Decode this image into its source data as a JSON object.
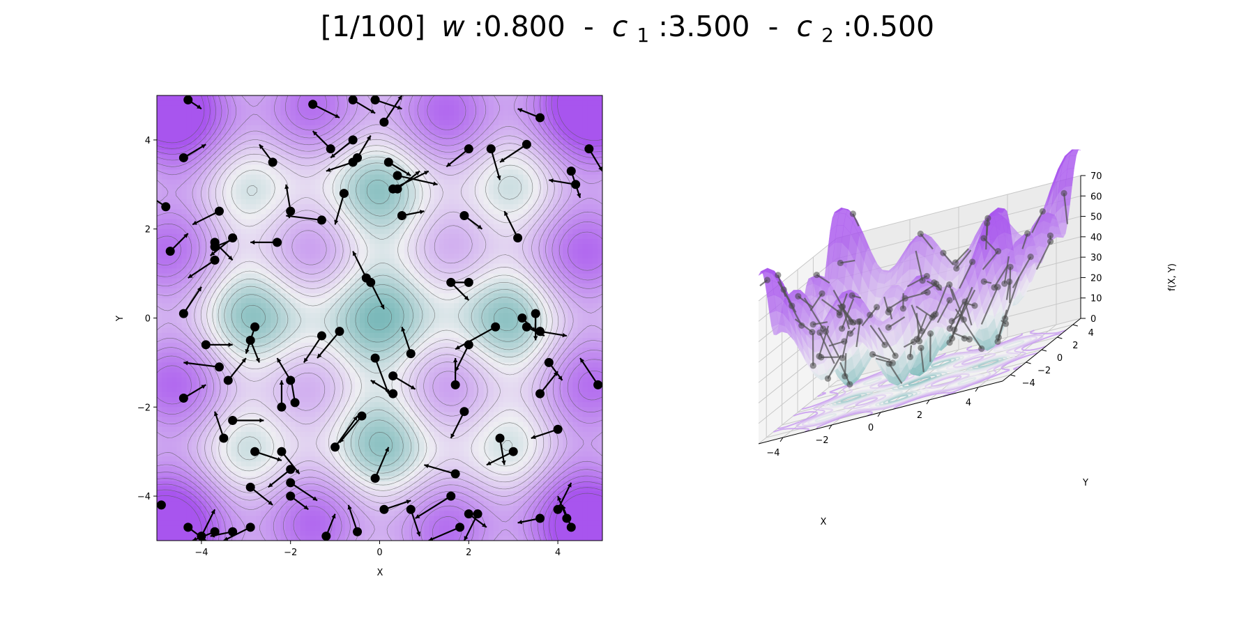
{
  "figure": {
    "title": {
      "iter": "[1/100]",
      "w_label": "w",
      "w_value": ":0.800",
      "sep1": " - ",
      "c1_label": "c",
      "c1_sub": "1",
      "c1_value": ":3.500",
      "sep2": " - ",
      "c2_label": "c",
      "c2_sub": "2",
      "c2_value": ":0.500"
    }
  },
  "colors": {
    "low": "#6db3b3",
    "mid": "#eeeef2",
    "high": "#a855ee",
    "particle": "#000000",
    "contour_line": "#555555"
  },
  "chart_data": [
    {
      "type": "contour",
      "xlabel": "X",
      "ylabel": "Y",
      "xlim": [
        -5,
        5
      ],
      "ylim": [
        -5,
        5
      ],
      "xticks": [
        -4,
        -2,
        0,
        2,
        4
      ],
      "yticks": [
        -4,
        -2,
        0,
        2,
        4
      ],
      "tick_labels_x": [
        "−4",
        "−2",
        "0",
        "2",
        "4"
      ],
      "tick_labels_y": [
        "−4",
        "−2",
        "0",
        "2",
        "4"
      ],
      "grid": false,
      "particles": [
        [
          -4.3,
          4.9,
          0.3,
          -0.2
        ],
        [
          -4.4,
          3.6,
          0.5,
          0.3
        ],
        [
          -4.8,
          2.5,
          -0.6,
          0.4
        ],
        [
          -4.7,
          1.5,
          0.4,
          0.4
        ],
        [
          -4.4,
          0.1,
          0.4,
          0.6
        ],
        [
          -4.9,
          -4.2,
          -0.3,
          0.0
        ],
        [
          -4.4,
          -1.8,
          0.5,
          0.3
        ],
        [
          -4.3,
          -4.7,
          0.4,
          -0.3
        ],
        [
          -4.0,
          -4.9,
          0.3,
          0.6
        ],
        [
          -3.7,
          -4.8,
          -0.5,
          -0.2
        ],
        [
          -3.6,
          2.4,
          -0.6,
          -0.3
        ],
        [
          -3.7,
          1.7,
          0.4,
          -0.4
        ],
        [
          -3.7,
          1.3,
          -0.6,
          -0.4
        ],
        [
          -3.7,
          1.6,
          0.5,
          0.2
        ],
        [
          -3.3,
          1.8,
          -0.5,
          -0.4
        ],
        [
          -3.9,
          -0.6,
          0.6,
          0.0
        ],
        [
          -3.6,
          -1.1,
          -0.8,
          0.1
        ],
        [
          -3.4,
          -1.4,
          0.4,
          0.5
        ],
        [
          -3.5,
          -2.7,
          -0.2,
          0.6
        ],
        [
          -3.3,
          -2.3,
          0.7,
          0.0
        ],
        [
          -3.3,
          -4.8,
          -0.5,
          -0.1
        ],
        [
          -2.9,
          -4.7,
          -0.6,
          -0.3
        ],
        [
          -2.9,
          -3.8,
          0.5,
          -0.4
        ],
        [
          -2.8,
          -3.0,
          0.6,
          -0.2
        ],
        [
          -2.8,
          -0.2,
          -0.2,
          -0.6
        ],
        [
          -2.9,
          -0.5,
          0.2,
          -0.5
        ],
        [
          -2.4,
          3.5,
          -0.3,
          0.4
        ],
        [
          -2.0,
          2.4,
          -0.1,
          0.6
        ],
        [
          -2.3,
          1.7,
          -0.6,
          0.0
        ],
        [
          -1.3,
          2.2,
          -0.8,
          0.1
        ],
        [
          -2.0,
          -1.4,
          -0.3,
          0.5
        ],
        [
          -1.9,
          -1.9,
          -0.1,
          0.6
        ],
        [
          -2.2,
          -2.0,
          0.0,
          0.6
        ],
        [
          -2.2,
          -3.0,
          0.4,
          -0.5
        ],
        [
          -2.0,
          -3.4,
          -0.5,
          -0.4
        ],
        [
          -2.0,
          -3.7,
          0.6,
          -0.4
        ],
        [
          -2.0,
          -4.0,
          0.4,
          -0.3
        ],
        [
          -1.3,
          -0.4,
          -0.4,
          -0.6
        ],
        [
          -0.9,
          -0.3,
          -0.5,
          -0.6
        ],
        [
          -1.2,
          -4.9,
          0.2,
          0.5
        ],
        [
          -1.5,
          4.8,
          0.6,
          -0.3
        ],
        [
          -1.1,
          3.8,
          -0.4,
          0.4
        ],
        [
          -0.6,
          4.0,
          -0.5,
          -0.4
        ],
        [
          -0.5,
          3.6,
          0.3,
          0.5
        ],
        [
          -0.6,
          3.5,
          -0.6,
          -0.2
        ],
        [
          -0.8,
          2.8,
          -0.2,
          -0.7
        ],
        [
          -0.3,
          0.9,
          -0.3,
          0.6
        ],
        [
          -0.2,
          0.8,
          0.3,
          -0.6
        ],
        [
          -0.6,
          4.9,
          0.5,
          -0.3
        ],
        [
          -0.1,
          4.9,
          0.6,
          -0.2
        ],
        [
          0.1,
          4.4,
          0.4,
          0.6
        ],
        [
          0.2,
          3.5,
          0.5,
          -0.3
        ],
        [
          0.3,
          2.9,
          0.8,
          0.4
        ],
        [
          0.5,
          2.3,
          0.5,
          0.1
        ],
        [
          0.4,
          2.9,
          0.5,
          0.4
        ],
        [
          0.4,
          3.2,
          0.9,
          -0.2
        ],
        [
          -0.4,
          -2.2,
          -0.5,
          -0.6
        ],
        [
          -1.0,
          -2.9,
          0.5,
          0.7
        ],
        [
          -0.5,
          -4.8,
          -0.2,
          0.6
        ],
        [
          -0.1,
          -3.6,
          0.3,
          0.7
        ],
        [
          -0.1,
          -0.9,
          0.3,
          -0.8
        ],
        [
          0.3,
          -1.3,
          0.5,
          -0.3
        ],
        [
          0.3,
          -1.7,
          -0.5,
          0.3
        ],
        [
          0.7,
          -0.8,
          -0.2,
          0.6
        ],
        [
          0.1,
          -4.3,
          0.6,
          0.2
        ],
        [
          0.7,
          -4.3,
          0.2,
          -0.6
        ],
        [
          1.6,
          -4.0,
          -0.8,
          -0.5
        ],
        [
          1.6,
          0.8,
          0.4,
          -0.4
        ],
        [
          2.0,
          0.8,
          -0.5,
          0.0
        ],
        [
          1.7,
          -1.5,
          0.0,
          0.6
        ],
        [
          2.0,
          -0.6,
          -0.3,
          -0.6
        ],
        [
          1.9,
          -2.1,
          -0.3,
          -0.6
        ],
        [
          1.9,
          2.3,
          0.4,
          -0.3
        ],
        [
          1.8,
          -4.7,
          -0.7,
          -0.3
        ],
        [
          2.0,
          -4.4,
          0.4,
          -0.3
        ],
        [
          2.2,
          -4.4,
          -0.3,
          -0.6
        ],
        [
          2.0,
          3.8,
          -0.5,
          -0.4
        ],
        [
          1.7,
          -3.5,
          -0.7,
          0.2
        ],
        [
          2.6,
          -0.2,
          -0.9,
          -0.5
        ],
        [
          2.7,
          -2.7,
          0.1,
          -0.6
        ],
        [
          3.0,
          -3.0,
          -0.6,
          -0.3
        ],
        [
          2.5,
          3.8,
          0.2,
          -0.7
        ],
        [
          3.1,
          1.8,
          -0.3,
          0.6
        ],
        [
          3.3,
          3.9,
          -0.6,
          -0.4
        ],
        [
          3.2,
          0.0,
          0.3,
          -0.3
        ],
        [
          3.3,
          -0.2,
          0.4,
          -0.2
        ],
        [
          3.5,
          0.1,
          0.0,
          -0.6
        ],
        [
          3.6,
          -0.3,
          0.6,
          -0.1
        ],
        [
          3.6,
          -1.7,
          0.4,
          0.5
        ],
        [
          3.8,
          -1.0,
          0.3,
          -0.4
        ],
        [
          4.0,
          -2.5,
          -0.6,
          -0.2
        ],
        [
          3.6,
          -4.5,
          -0.5,
          -0.1
        ],
        [
          4.0,
          -4.3,
          0.3,
          0.6
        ],
        [
          4.2,
          -4.5,
          -0.2,
          0.5
        ],
        [
          4.3,
          -4.7,
          -0.2,
          0.5
        ],
        [
          3.6,
          4.5,
          -0.5,
          0.2
        ],
        [
          4.3,
          3.3,
          0.2,
          -0.6
        ],
        [
          4.4,
          3.0,
          -0.6,
          0.1
        ],
        [
          4.7,
          3.8,
          0.3,
          -0.5
        ],
        [
          4.9,
          -1.5,
          -0.4,
          0.6
        ]
      ]
    },
    {
      "type": "surface3d",
      "xlabel": "X",
      "ylabel": "Y",
      "zlabel": "f(X, Y)",
      "xlim": [
        -5,
        5
      ],
      "ylim": [
        -5,
        5
      ],
      "zlim": [
        0,
        70
      ],
      "xticks": [
        -4,
        -2,
        0,
        2,
        4
      ],
      "yticks": [
        -4,
        -2,
        0,
        2,
        4
      ],
      "zticks": [
        0,
        10,
        20,
        30,
        40,
        50,
        60,
        70
      ],
      "tick_labels_x": [
        "−4",
        "−2",
        "0",
        "2",
        "4"
      ],
      "tick_labels_y": [
        "−4",
        "−2",
        "0",
        "2",
        "4"
      ],
      "tick_labels_z": [
        "0",
        "10",
        "20",
        "30",
        "40",
        "50",
        "60",
        "70"
      ],
      "grid": true
    }
  ]
}
